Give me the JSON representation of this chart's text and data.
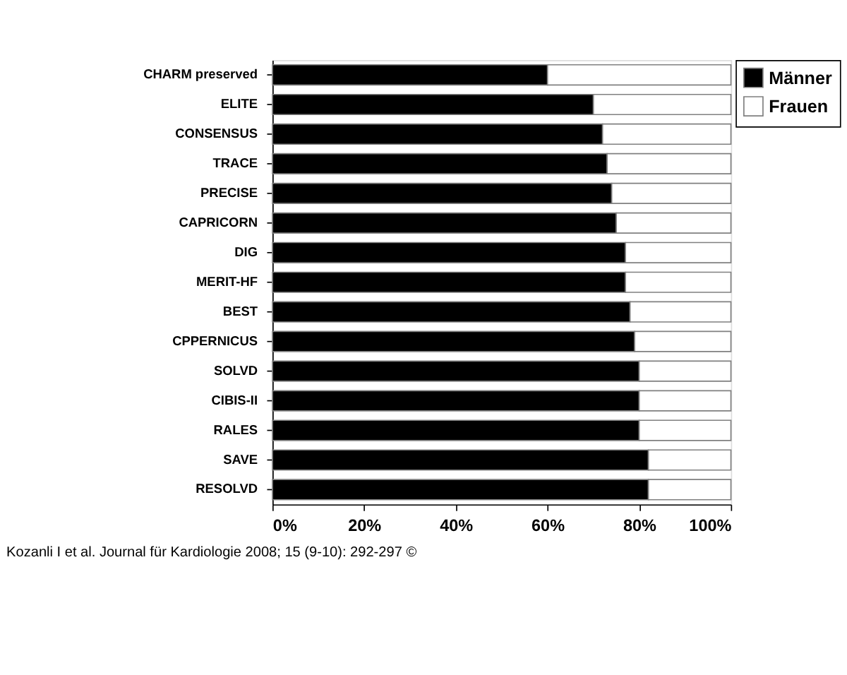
{
  "chart_data": {
    "type": "bar",
    "orientation": "horizontal",
    "stacked": true,
    "categories": [
      "CHARM preserved",
      "ELITE",
      "CONSENSUS",
      "TRACE",
      "PRECISE",
      "CAPRICORN",
      "DIG",
      "MERIT-HF",
      "BEST",
      "CPPERNICUS",
      "SOLVD",
      "CIBIS-II",
      "RALES",
      "SAVE",
      "RESOLVD"
    ],
    "series": [
      {
        "name": "Männer",
        "color": "#000000",
        "values": [
          60,
          70,
          72,
          73,
          74,
          75,
          77,
          77,
          78,
          79,
          80,
          80,
          80,
          82,
          82
        ]
      },
      {
        "name": "Frauen",
        "color": "#ffffff",
        "values": [
          40,
          30,
          28,
          27,
          26,
          25,
          23,
          23,
          22,
          21,
          20,
          20,
          20,
          18,
          18
        ]
      }
    ],
    "xlim": [
      0,
      100
    ],
    "xticks": [
      {
        "value": 0,
        "label": "0%"
      },
      {
        "value": 20,
        "label": "20%"
      },
      {
        "value": 40,
        "label": "40%"
      },
      {
        "value": 60,
        "label": "60%"
      },
      {
        "value": 80,
        "label": "80%"
      },
      {
        "value": 100,
        "label": "100%"
      }
    ],
    "legend": "right",
    "grid": false,
    "annotations": [
      "Kozanli I et al. Journal für Kardiologie 2008; 15 (9-10): 292-297 ©"
    ]
  }
}
